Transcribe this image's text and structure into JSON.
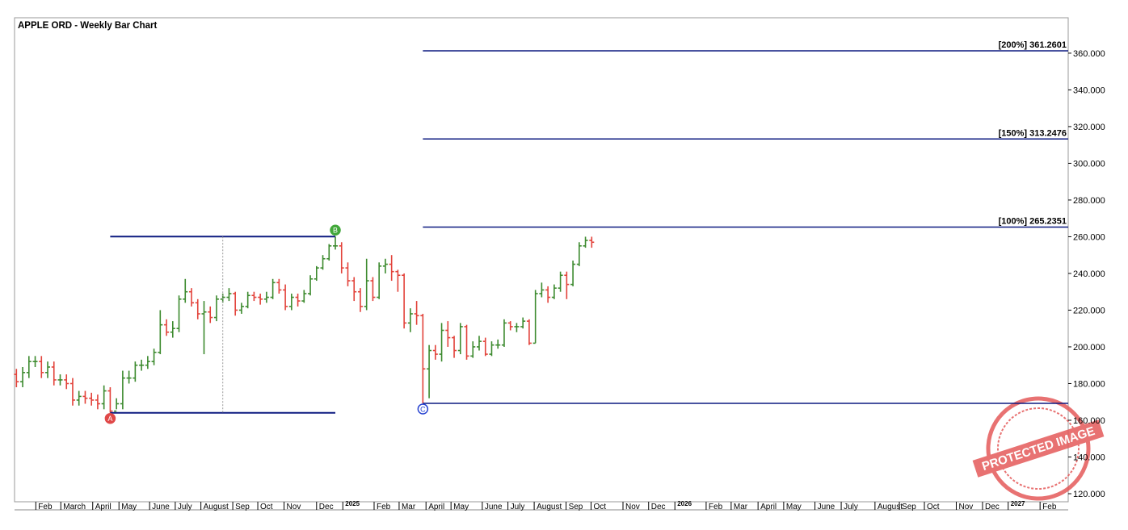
{
  "chart_data": {
    "type": "ohlc",
    "title": "APPLE ORD - Weekly Bar Chart",
    "up_color": "#3c8a2e",
    "down_color": "#e2423a",
    "level_color": "#0d1a80",
    "open": [
      185,
      181,
      186,
      192,
      192,
      186,
      189,
      182,
      182,
      180,
      171,
      173,
      172,
      171,
      169,
      176,
      165,
      169,
      183,
      183,
      190,
      190,
      192,
      197,
      212,
      208,
      210,
      226,
      230,
      224,
      218,
      219,
      216,
      226,
      227,
      229,
      220,
      222,
      228,
      227,
      226,
      227,
      235,
      231,
      222,
      227,
      225,
      229,
      237,
      243,
      248,
      255,
      255,
      243,
      236,
      230,
      222,
      236,
      227,
      244,
      245,
      241,
      239,
      213,
      218,
      217,
      188,
      198,
      196,
      209,
      205,
      198,
      211,
      195,
      200,
      203,
      196,
      201,
      201,
      213,
      211,
      211,
      214,
      202,
      229,
      231,
      227,
      232,
      239,
      234,
      245,
      255,
      258
    ],
    "high": [
      188,
      189,
      195,
      195,
      195,
      192,
      192,
      185,
      185,
      183,
      176,
      176,
      175,
      174,
      179,
      178,
      172,
      187,
      187,
      192,
      193,
      195,
      199,
      220,
      215,
      214,
      228,
      237,
      232,
      226,
      225,
      222,
      228,
      229,
      232,
      230,
      224,
      230,
      230,
      229,
      230,
      237,
      237,
      234,
      229,
      229,
      231,
      239,
      244,
      250,
      256,
      260.1,
      257,
      246,
      238,
      232,
      248,
      238,
      246,
      248,
      250,
      242,
      240,
      221,
      225,
      218,
      201,
      201,
      213,
      214,
      206,
      213,
      212,
      203,
      206,
      205,
      203,
      204,
      215,
      214,
      213,
      216,
      215,
      231,
      235,
      233,
      234,
      241,
      241,
      247,
      257,
      260,
      260
    ],
    "low": [
      178,
      178,
      183,
      189,
      183,
      183,
      179,
      179,
      177,
      168,
      168,
      169,
      168,
      166,
      166,
      164.08,
      166,
      166,
      180,
      181,
      187,
      188,
      190,
      196,
      206,
      205,
      208,
      224,
      222,
      215,
      196,
      213,
      214,
      224,
      225,
      217,
      218,
      221,
      225,
      223,
      224,
      226,
      229,
      220,
      220,
      222,
      224,
      228,
      236,
      242,
      247,
      253,
      240,
      233,
      225,
      219,
      220,
      225,
      226,
      240,
      236,
      230,
      210,
      208,
      212,
      169.21,
      172,
      193,
      192,
      200,
      194,
      196,
      193,
      194,
      198,
      195,
      195,
      199,
      200,
      209,
      208,
      210,
      201,
      202,
      227,
      224,
      226,
      230,
      226,
      233,
      244,
      254,
      254
    ],
    "close": [
      181,
      186,
      192,
      192,
      186,
      189,
      182,
      182,
      180,
      171,
      173,
      172,
      171,
      169,
      176,
      165,
      169,
      183,
      183,
      190,
      190,
      192,
      197,
      212,
      208,
      210,
      226,
      230,
      224,
      218,
      219,
      216,
      226,
      227,
      229,
      220,
      222,
      228,
      227,
      226,
      227,
      235,
      231,
      222,
      227,
      225,
      229,
      237,
      243,
      248,
      255,
      255,
      243,
      236,
      230,
      222,
      236,
      227,
      244,
      245,
      241,
      239,
      213,
      218,
      217,
      188,
      198,
      196,
      209,
      205,
      198,
      211,
      195,
      200,
      203,
      196,
      201,
      201,
      213,
      211,
      211,
      214,
      202,
      229,
      231,
      227,
      232,
      239,
      234,
      245,
      255,
      258,
      257
    ],
    "swing_points": [
      {
        "label": "A",
        "week": 15,
        "value": 164.08,
        "color": "#e04848",
        "side": "below"
      },
      {
        "label": "B",
        "week": 51,
        "value": 260.1,
        "color": "#42a83a",
        "side": "above"
      },
      {
        "label": "C",
        "week": 65,
        "value": 169.21,
        "color": "#2440d0",
        "side": "below"
      }
    ],
    "projections": [
      {
        "label": "[100%] 265.2351",
        "value": 265.2351
      },
      {
        "label": "[150%] 313.2476",
        "value": 313.2476
      },
      {
        "label": "[200%] 361.2601",
        "value": 361.2601
      }
    ],
    "ylim": [
      115.6,
      379.3
    ],
    "yticks": [
      {
        "value": 120,
        "label": "120.000"
      },
      {
        "value": 140,
        "label": "140.000"
      },
      {
        "value": 160,
        "label": "160.000"
      },
      {
        "value": 180,
        "label": "180.000"
      },
      {
        "value": 200,
        "label": "200.000"
      },
      {
        "value": 220,
        "label": "220.000"
      },
      {
        "value": 240,
        "label": "240.000"
      },
      {
        "value": 260,
        "label": "260.000"
      },
      {
        "value": 280,
        "label": "280.000"
      },
      {
        "value": 300,
        "label": "300.000"
      },
      {
        "value": 320,
        "label": "320.000"
      },
      {
        "value": 340,
        "label": "340.000"
      },
      {
        "value": 360,
        "label": "360.000"
      }
    ],
    "xlim": [
      -0.3,
      168.2
    ],
    "xticks": [
      {
        "value": 3.1,
        "label": "Feb"
      },
      {
        "value": 7.1,
        "label": "March"
      },
      {
        "value": 12.2,
        "label": "April"
      },
      {
        "value": 16.4,
        "label": "May"
      },
      {
        "value": 21.3,
        "label": "June"
      },
      {
        "value": 25.4,
        "label": "July"
      },
      {
        "value": 29.5,
        "label": "August"
      },
      {
        "value": 34.6,
        "label": "Sep"
      },
      {
        "value": 38.6,
        "label": "Oct"
      },
      {
        "value": 42.8,
        "label": "Nov"
      },
      {
        "value": 48.0,
        "label": "Dec"
      },
      {
        "value": 52.2,
        "label": "2025"
      },
      {
        "value": 57.2,
        "label": "Feb"
      },
      {
        "value": 61.2,
        "label": "Mar"
      },
      {
        "value": 65.5,
        "label": "April"
      },
      {
        "value": 69.5,
        "label": "May"
      },
      {
        "value": 74.5,
        "label": "June"
      },
      {
        "value": 78.6,
        "label": "July"
      },
      {
        "value": 82.8,
        "label": "August"
      },
      {
        "value": 87.9,
        "label": "Sep"
      },
      {
        "value": 91.9,
        "label": "Oct"
      },
      {
        "value": 97.0,
        "label": "Nov"
      },
      {
        "value": 101.1,
        "label": "Dec"
      },
      {
        "value": 105.3,
        "label": "2026"
      },
      {
        "value": 110.3,
        "label": "Feb"
      },
      {
        "value": 114.3,
        "label": "Mar"
      },
      {
        "value": 118.6,
        "label": "April"
      },
      {
        "value": 122.7,
        "label": "May"
      },
      {
        "value": 127.7,
        "label": "June"
      },
      {
        "value": 131.9,
        "label": "July"
      },
      {
        "value": 137.3,
        "label": "August"
      },
      {
        "value": 141.2,
        "label": "Sep"
      },
      {
        "value": 145.2,
        "label": "Oct"
      },
      {
        "value": 150.3,
        "label": "Nov"
      },
      {
        "value": 154.5,
        "label": "Dec"
      },
      {
        "value": 158.6,
        "label": "2027"
      },
      {
        "value": 163.7,
        "label": "Feb"
      }
    ],
    "watermark": "PROTECTED IMAGE"
  }
}
